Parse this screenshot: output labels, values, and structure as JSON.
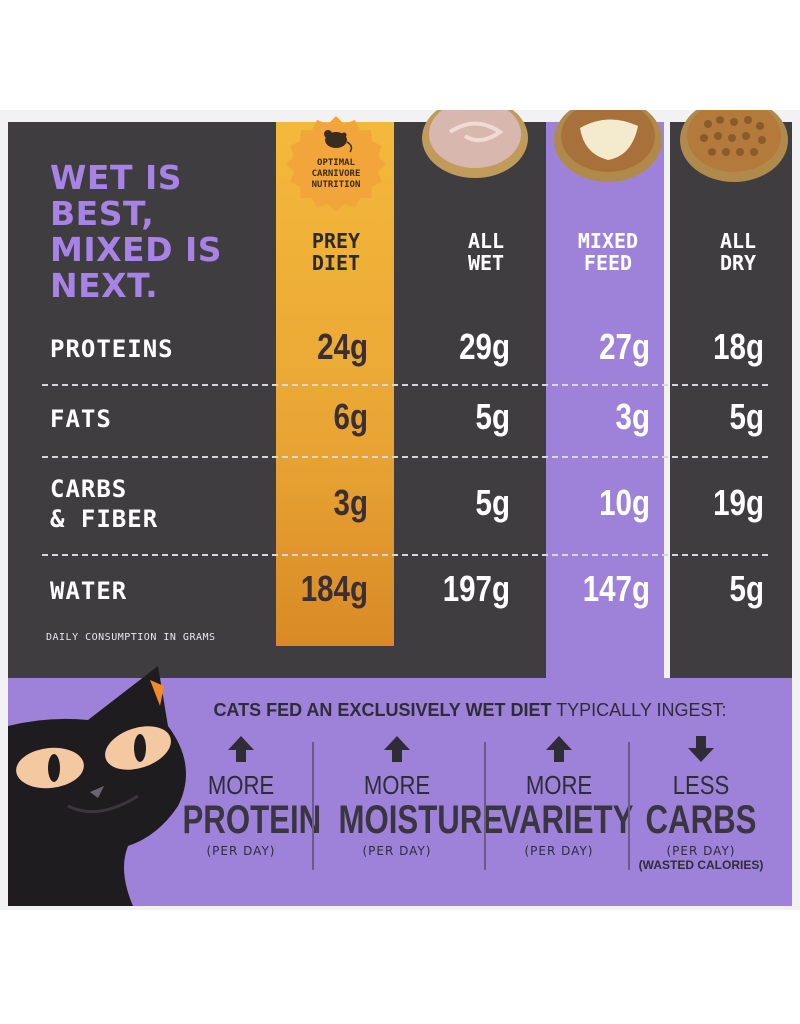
{
  "headline": [
    "WET IS",
    "BEST,",
    "MIXED IS",
    "NEXT."
  ],
  "badge": {
    "text": "OPTIMAL CARNIVORE NUTRITION",
    "icon": "mouse-icon"
  },
  "columns": [
    {
      "id": "prey",
      "line1": "PREY",
      "line2": "DIET"
    },
    {
      "id": "wet",
      "line1": "ALL",
      "line2": "WET"
    },
    {
      "id": "mixed",
      "line1": "MIXED",
      "line2": "FEED"
    },
    {
      "id": "dry",
      "line1": "ALL",
      "line2": "DRY"
    }
  ],
  "rows": [
    {
      "label1": "PROTEINS",
      "label2": "",
      "values": [
        "24g",
        "29g",
        "27g",
        "18g"
      ]
    },
    {
      "label1": "FATS",
      "label2": "",
      "values": [
        "6g",
        "5g",
        "3g",
        "5g"
      ]
    },
    {
      "label1": "CARBS",
      "label2": "& FIBER",
      "values": [
        "3g",
        "5g",
        "10g",
        "19g"
      ]
    },
    {
      "label1": "WATER",
      "label2": "",
      "values": [
        "184g",
        "197g",
        "147g",
        "5g"
      ]
    }
  ],
  "footnote": "DAILY CONSUMPTION IN GRAMS",
  "intro": {
    "bold": "CATS FED AN EXCLUSIVELY WET DIET",
    "rest": " TYPICALLY INGEST:"
  },
  "benefits": [
    {
      "direction": "up",
      "word1": "MORE",
      "word2": "PROTEIN",
      "per": "(PER DAY)",
      "note": ""
    },
    {
      "direction": "up",
      "word1": "MORE",
      "word2": "MOISTURE",
      "per": "(PER DAY)",
      "note": ""
    },
    {
      "direction": "up",
      "word1": "MORE",
      "word2": "VARIETY",
      "per": "(PER DAY)",
      "note": ""
    },
    {
      "direction": "down",
      "word1": "LESS",
      "word2": "CARBS",
      "per": "(PER DAY)",
      "note": "(WASTED CALORIES)"
    }
  ],
  "colors": {
    "dark": "#403d40",
    "purple": "#9e82da",
    "headline": "#a683e4",
    "gold": "#f4b93c",
    "text_dark": "#2f2c37"
  }
}
